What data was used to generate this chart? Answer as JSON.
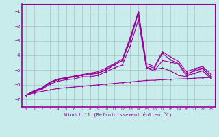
{
  "xlabel": "Windchill (Refroidissement éolien,°C)",
  "x": [
    0,
    1,
    2,
    3,
    4,
    5,
    6,
    7,
    8,
    9,
    10,
    11,
    12,
    13,
    14,
    15,
    16,
    17,
    18,
    19,
    20,
    21,
    22,
    23
  ],
  "lines": [
    [
      -6.7,
      -6.55,
      -6.45,
      -6.35,
      -6.25,
      -6.2,
      -6.15,
      -6.1,
      -6.05,
      -6.0,
      -5.95,
      -5.9,
      -5.85,
      -5.8,
      -5.75,
      -5.7,
      -5.68,
      -5.65,
      -5.62,
      -5.6,
      -5.58,
      -5.55,
      -5.52,
      -5.5
    ],
    [
      -6.7,
      -6.5,
      -6.3,
      -5.95,
      -5.75,
      -5.65,
      -5.6,
      -5.45,
      -5.45,
      -5.35,
      -5.1,
      -4.85,
      -4.65,
      -3.35,
      -1.55,
      -4.85,
      -5.05,
      -4.35,
      -4.45,
      -4.6,
      -5.4,
      -5.2,
      -5.05,
      -5.55
    ],
    [
      -6.7,
      -6.45,
      -6.25,
      -5.85,
      -5.65,
      -5.55,
      -5.45,
      -5.35,
      -5.3,
      -5.2,
      -5.0,
      -4.65,
      -4.35,
      -3.0,
      -1.1,
      -4.8,
      -4.95,
      -4.85,
      -5.05,
      -5.35,
      -5.45,
      -4.95,
      -4.85,
      -5.45
    ],
    [
      -6.7,
      -6.45,
      -6.25,
      -5.85,
      -5.65,
      -5.55,
      -5.45,
      -5.35,
      -5.25,
      -5.2,
      -4.95,
      -4.6,
      -4.35,
      -2.85,
      -1.05,
      -4.7,
      -4.85,
      -3.85,
      -4.3,
      -4.55,
      -5.25,
      -5.05,
      -4.9,
      -5.4
    ],
    [
      -6.7,
      -6.4,
      -6.2,
      -5.8,
      -5.6,
      -5.5,
      -5.4,
      -5.3,
      -5.2,
      -5.1,
      -4.85,
      -4.55,
      -4.25,
      -2.75,
      -1.0,
      -4.55,
      -4.75,
      -3.75,
      -4.1,
      -4.4,
      -5.1,
      -4.9,
      -4.75,
      -5.25
    ]
  ],
  "line_color": "#990099",
  "bg_color": "#c8ecec",
  "grid_color": "#b0c8c8",
  "ylim": [
    -7.5,
    -0.5
  ],
  "xlim": [
    -0.5,
    23.5
  ],
  "yticks": [
    -7,
    -6,
    -5,
    -4,
    -3,
    -2,
    -1
  ],
  "xticks": [
    0,
    1,
    2,
    3,
    4,
    5,
    6,
    7,
    8,
    9,
    10,
    11,
    12,
    13,
    14,
    15,
    16,
    17,
    18,
    19,
    20,
    21,
    22,
    23
  ],
  "markersize": 2.0,
  "linewidth": 0.8
}
